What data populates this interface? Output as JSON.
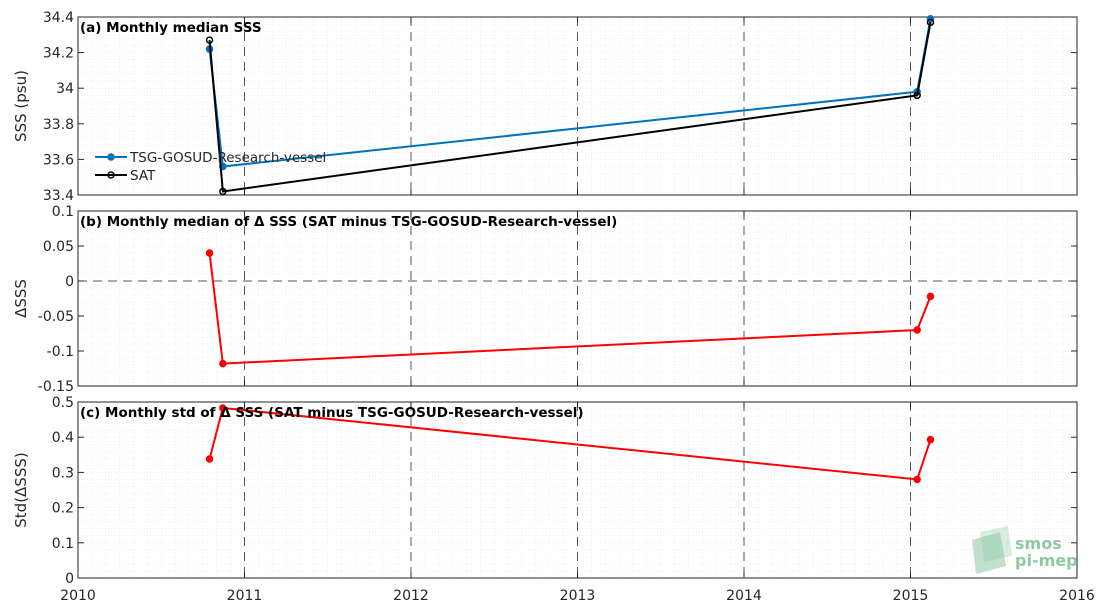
{
  "colors": {
    "tsg": "#0072bd",
    "sat": "#000000",
    "delta": "#ff0000",
    "logo": "#8fc9a3"
  },
  "logo": {
    "line1": "smos",
    "line2": "pi-mep"
  },
  "chart_data": [
    {
      "type": "line",
      "title": "(a) Monthly median SSS",
      "ylabel": "SSS (psu)",
      "xlim": [
        2010,
        2016
      ],
      "ylim": [
        33.4,
        34.4
      ],
      "yticks": [
        33.4,
        33.6,
        33.8,
        34,
        34.2,
        34.4
      ],
      "ytick_labels": [
        "33.4",
        "33.6",
        "33.8",
        "34",
        "34.2",
        "34.4"
      ],
      "grid": true,
      "legend_position": "left",
      "series": [
        {
          "name": "TSG-GOSUD-Research-vessel",
          "x": [
            2010.79,
            2010.87,
            2015.04,
            2015.12
          ],
          "y": [
            34.22,
            33.56,
            33.98,
            34.39
          ]
        },
        {
          "name": "SAT",
          "x": [
            2010.79,
            2010.87,
            2015.04,
            2015.12
          ],
          "y": [
            34.27,
            33.42,
            33.96,
            34.37
          ]
        }
      ]
    },
    {
      "type": "line",
      "title": "(b) Monthly median of Δ SSS (SAT minus TSG-GOSUD-Research-vessel)",
      "ylabel": "ΔSSS",
      "xlim": [
        2010,
        2016
      ],
      "ylim": [
        -0.15,
        0.1
      ],
      "yticks": [
        -0.15,
        -0.1,
        -0.05,
        0,
        0.05,
        0.1
      ],
      "ytick_labels": [
        "-0.15",
        "-0.1",
        "-0.05",
        "0",
        "0.05",
        "0.1"
      ],
      "grid": true,
      "series": [
        {
          "x": [
            2010.79,
            2010.87,
            2015.04,
            2015.12
          ],
          "y": [
            0.04,
            -0.118,
            -0.07,
            -0.022
          ]
        }
      ]
    },
    {
      "type": "line",
      "title": "(c) Monthly std of Δ SSS (SAT minus TSG-GOSUD-Research-vessel)",
      "ylabel": "Std(ΔSSS)",
      "xlim": [
        2010,
        2016
      ],
      "ylim": [
        0,
        0.5
      ],
      "yticks": [
        0,
        0.1,
        0.2,
        0.3,
        0.4,
        0.5
      ],
      "ytick_labels": [
        "0",
        "0.1",
        "0.2",
        "0.3",
        "0.4",
        "0.5"
      ],
      "xticks": [
        2010,
        2011,
        2012,
        2013,
        2014,
        2015,
        2016
      ],
      "xtick_labels": [
        "2010",
        "2011",
        "2012",
        "2013",
        "2014",
        "2015",
        "2016"
      ],
      "grid": true,
      "series": [
        {
          "x": [
            2010.79,
            2010.87,
            2015.04,
            2015.12
          ],
          "y": [
            0.338,
            0.483,
            0.28,
            0.393
          ]
        }
      ]
    }
  ]
}
